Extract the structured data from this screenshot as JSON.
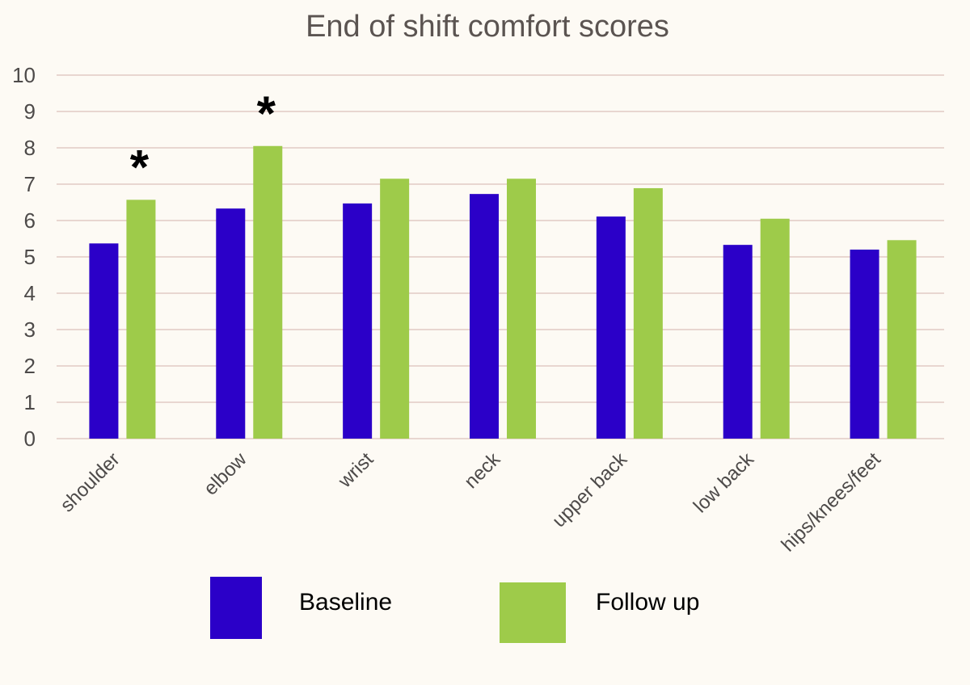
{
  "chart_data": {
    "type": "bar",
    "title": "End of shift comfort scores",
    "xlabel": "",
    "ylabel": "",
    "ylim": [
      0,
      10
    ],
    "yticks": [
      0,
      1,
      2,
      3,
      4,
      5,
      6,
      7,
      8,
      9,
      10
    ],
    "grid": true,
    "legend_position": "bottom",
    "categories": [
      "shoulder",
      "elbow",
      "wrist",
      "neck",
      "upper back",
      "low back",
      "hips/knees/feet"
    ],
    "series": [
      {
        "name": "Baseline",
        "color": "#2b00c8",
        "values": [
          5.37,
          6.33,
          6.47,
          6.73,
          6.11,
          5.33,
          5.2
        ]
      },
      {
        "name": "Follow up",
        "color": "#9ecb4a",
        "values": [
          6.57,
          8.05,
          7.15,
          7.15,
          6.89,
          6.05,
          5.46
        ]
      }
    ],
    "annotations": [
      {
        "text": "*",
        "category": "shoulder",
        "series": 1
      },
      {
        "text": "*",
        "category": "elbow",
        "series": 1
      }
    ]
  }
}
